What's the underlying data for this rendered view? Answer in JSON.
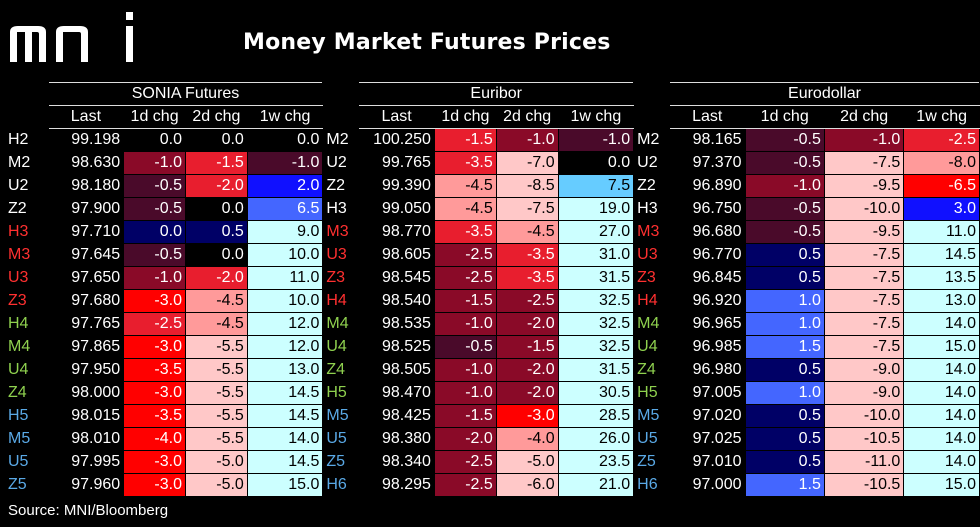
{
  "logo_text": "mni",
  "title": "Money Market Futures Prices",
  "source": "Source: MNI/Bloomberg",
  "colors": {
    "background": "#000000",
    "contract_white": "#ffffff",
    "contract_red": "#ff3030",
    "contract_green": "#8fd14f",
    "contract_blue": "#5aa9e6",
    "neg_dark": "#4a0a2a",
    "neg_mid": "#8a0a28",
    "neg_red": "#e81e2e",
    "neg_bright": "#ff0000",
    "neg_light": "#ff9a9a",
    "neg_pale": "#ffc8c8",
    "pos_light": "#ccffff",
    "pos_cyan": "#66ccff",
    "pos_mid": "#4466ff",
    "pos_blue": "#1010ff",
    "pos_dark": "#000066"
  },
  "chart_data": {
    "type": "table",
    "title": "Money Market Futures Prices",
    "groups": [
      {
        "name": "SONIA Futures",
        "columns": [
          "Last",
          "1d chg",
          "2d chg",
          "1w chg"
        ],
        "rows": [
          {
            "contract": "H2",
            "color": "white",
            "last": "99.198",
            "d1": "0.0",
            "d2": "0.0",
            "w1": "0.0"
          },
          {
            "contract": "M2",
            "color": "white",
            "last": "98.630",
            "d1": "-1.0",
            "d2": "-1.5",
            "w1": "-1.0"
          },
          {
            "contract": "U2",
            "color": "white",
            "last": "98.180",
            "d1": "-0.5",
            "d2": "-2.0",
            "w1": "2.0"
          },
          {
            "contract": "Z2",
            "color": "white",
            "last": "97.900",
            "d1": "-0.5",
            "d2": "0.0",
            "w1": "6.5"
          },
          {
            "contract": "H3",
            "color": "red",
            "last": "97.710",
            "d1": "0.0",
            "d2": "0.5",
            "w1": "9.0"
          },
          {
            "contract": "M3",
            "color": "red",
            "last": "97.645",
            "d1": "-0.5",
            "d2": "0.0",
            "w1": "10.0"
          },
          {
            "contract": "U3",
            "color": "red",
            "last": "97.650",
            "d1": "-1.0",
            "d2": "-2.0",
            "w1": "11.0"
          },
          {
            "contract": "Z3",
            "color": "red",
            "last": "97.680",
            "d1": "-3.0",
            "d2": "-4.5",
            "w1": "10.0"
          },
          {
            "contract": "H4",
            "color": "green",
            "last": "97.765",
            "d1": "-2.5",
            "d2": "-4.5",
            "w1": "12.0"
          },
          {
            "contract": "M4",
            "color": "green",
            "last": "97.865",
            "d1": "-3.0",
            "d2": "-5.5",
            "w1": "12.0"
          },
          {
            "contract": "U4",
            "color": "green",
            "last": "97.950",
            "d1": "-3.5",
            "d2": "-5.5",
            "w1": "13.0"
          },
          {
            "contract": "Z4",
            "color": "green",
            "last": "98.000",
            "d1": "-3.0",
            "d2": "-5.5",
            "w1": "14.5"
          },
          {
            "contract": "H5",
            "color": "blue",
            "last": "98.015",
            "d1": "-3.5",
            "d2": "-5.5",
            "w1": "14.5"
          },
          {
            "contract": "M5",
            "color": "blue",
            "last": "98.010",
            "d1": "-4.0",
            "d2": "-5.5",
            "w1": "14.0"
          },
          {
            "contract": "U5",
            "color": "blue",
            "last": "97.995",
            "d1": "-3.0",
            "d2": "-5.0",
            "w1": "14.5"
          },
          {
            "contract": "Z5",
            "color": "blue",
            "last": "97.960",
            "d1": "-3.0",
            "d2": "-5.0",
            "w1": "15.0"
          }
        ]
      },
      {
        "name": "Euribor",
        "columns": [
          "Last",
          "1d chg",
          "2d chg",
          "1w chg"
        ],
        "rows": [
          {
            "contract": "M2",
            "color": "white",
            "last": "100.250",
            "d1": "-1.5",
            "d2": "-1.0",
            "w1": "-1.0"
          },
          {
            "contract": "U2",
            "color": "white",
            "last": "99.765",
            "d1": "-3.5",
            "d2": "-7.0",
            "w1": "0.0"
          },
          {
            "contract": "Z2",
            "color": "white",
            "last": "99.390",
            "d1": "-4.5",
            "d2": "-8.5",
            "w1": "7.5"
          },
          {
            "contract": "H3",
            "color": "white",
            "last": "99.050",
            "d1": "-4.5",
            "d2": "-7.5",
            "w1": "19.0"
          },
          {
            "contract": "M3",
            "color": "red",
            "last": "98.770",
            "d1": "-3.5",
            "d2": "-4.5",
            "w1": "27.0"
          },
          {
            "contract": "U3",
            "color": "red",
            "last": "98.605",
            "d1": "-2.5",
            "d2": "-3.5",
            "w1": "31.0"
          },
          {
            "contract": "Z3",
            "color": "red",
            "last": "98.545",
            "d1": "-2.5",
            "d2": "-3.5",
            "w1": "31.5"
          },
          {
            "contract": "H4",
            "color": "red",
            "last": "98.540",
            "d1": "-1.5",
            "d2": "-2.5",
            "w1": "32.5"
          },
          {
            "contract": "M4",
            "color": "green",
            "last": "98.535",
            "d1": "-1.0",
            "d2": "-2.0",
            "w1": "32.5"
          },
          {
            "contract": "U4",
            "color": "green",
            "last": "98.525",
            "d1": "-0.5",
            "d2": "-1.5",
            "w1": "32.5"
          },
          {
            "contract": "Z4",
            "color": "green",
            "last": "98.505",
            "d1": "-1.0",
            "d2": "-2.0",
            "w1": "31.5"
          },
          {
            "contract": "H5",
            "color": "green",
            "last": "98.470",
            "d1": "-1.0",
            "d2": "-2.0",
            "w1": "30.5"
          },
          {
            "contract": "M5",
            "color": "blue",
            "last": "98.425",
            "d1": "-1.5",
            "d2": "-3.0",
            "w1": "28.5"
          },
          {
            "contract": "U5",
            "color": "blue",
            "last": "98.380",
            "d1": "-2.0",
            "d2": "-4.0",
            "w1": "26.0"
          },
          {
            "contract": "Z5",
            "color": "blue",
            "last": "98.340",
            "d1": "-2.5",
            "d2": "-5.0",
            "w1": "23.5"
          },
          {
            "contract": "H6",
            "color": "blue",
            "last": "98.295",
            "d1": "-2.5",
            "d2": "-6.0",
            "w1": "21.0"
          }
        ]
      },
      {
        "name": "Eurodollar",
        "columns": [
          "Last",
          "1d chg",
          "2d chg",
          "1w chg"
        ],
        "rows": [
          {
            "contract": "M2",
            "color": "white",
            "last": "98.165",
            "d1": "-0.5",
            "d2": "-1.0",
            "w1": "-2.5"
          },
          {
            "contract": "U2",
            "color": "white",
            "last": "97.370",
            "d1": "-0.5",
            "d2": "-7.5",
            "w1": "-8.0"
          },
          {
            "contract": "Z2",
            "color": "white",
            "last": "96.890",
            "d1": "-1.0",
            "d2": "-9.5",
            "w1": "-6.5"
          },
          {
            "contract": "H3",
            "color": "white",
            "last": "96.750",
            "d1": "-0.5",
            "d2": "-10.0",
            "w1": "3.0"
          },
          {
            "contract": "M3",
            "color": "red",
            "last": "96.680",
            "d1": "-0.5",
            "d2": "-9.5",
            "w1": "11.0"
          },
          {
            "contract": "U3",
            "color": "red",
            "last": "96.770",
            "d1": "0.5",
            "d2": "-7.5",
            "w1": "14.5"
          },
          {
            "contract": "Z3",
            "color": "red",
            "last": "96.845",
            "d1": "0.5",
            "d2": "-7.5",
            "w1": "13.5"
          },
          {
            "contract": "H4",
            "color": "red",
            "last": "96.920",
            "d1": "1.0",
            "d2": "-7.5",
            "w1": "13.0"
          },
          {
            "contract": "M4",
            "color": "green",
            "last": "96.965",
            "d1": "1.0",
            "d2": "-7.5",
            "w1": "14.0"
          },
          {
            "contract": "U4",
            "color": "green",
            "last": "96.985",
            "d1": "1.5",
            "d2": "-7.5",
            "w1": "15.0"
          },
          {
            "contract": "Z4",
            "color": "green",
            "last": "96.980",
            "d1": "0.5",
            "d2": "-9.0",
            "w1": "14.0"
          },
          {
            "contract": "H5",
            "color": "green",
            "last": "97.005",
            "d1": "1.0",
            "d2": "-9.0",
            "w1": "14.0"
          },
          {
            "contract": "M5",
            "color": "blue",
            "last": "97.020",
            "d1": "0.5",
            "d2": "-10.0",
            "w1": "14.0"
          },
          {
            "contract": "U5",
            "color": "blue",
            "last": "97.025",
            "d1": "0.5",
            "d2": "-10.5",
            "w1": "14.0"
          },
          {
            "contract": "Z5",
            "color": "blue",
            "last": "97.010",
            "d1": "0.5",
            "d2": "-11.0",
            "w1": "14.0"
          },
          {
            "contract": "H6",
            "color": "blue",
            "last": "97.000",
            "d1": "1.5",
            "d2": "-10.5",
            "w1": "15.0"
          }
        ]
      }
    ],
    "cell_fills": {
      "sonia": [
        [
          "",
          "",
          ""
        ],
        [
          "neg_mid",
          "neg_red",
          "neg_dark"
        ],
        [
          "neg_dark",
          "neg_red",
          "pos_blue"
        ],
        [
          "neg_dark",
          "",
          "pos_mid"
        ],
        [
          "pos_dark",
          "pos_dark",
          "pos_light"
        ],
        [
          "neg_dark",
          "",
          "pos_light"
        ],
        [
          "neg_mid",
          "neg_red",
          "pos_light"
        ],
        [
          "neg_bright",
          "neg_light",
          "pos_light"
        ],
        [
          "neg_red",
          "neg_light",
          "pos_light"
        ],
        [
          "neg_bright",
          "neg_pale",
          "pos_light"
        ],
        [
          "neg_bright",
          "neg_pale",
          "pos_light"
        ],
        [
          "neg_bright",
          "neg_pale",
          "pos_light"
        ],
        [
          "neg_bright",
          "neg_pale",
          "pos_light"
        ],
        [
          "neg_bright",
          "neg_pale",
          "pos_light"
        ],
        [
          "neg_bright",
          "neg_pale",
          "pos_light"
        ],
        [
          "neg_bright",
          "neg_pale",
          "pos_light"
        ]
      ],
      "euribor": [
        [
          "neg_red",
          "neg_mid",
          "neg_dark"
        ],
        [
          "neg_red",
          "neg_pale",
          ""
        ],
        [
          "neg_light",
          "neg_pale",
          "pos_cyan"
        ],
        [
          "neg_light",
          "neg_pale",
          "pos_light"
        ],
        [
          "neg_red",
          "neg_light",
          "pos_light"
        ],
        [
          "neg_mid",
          "neg_red",
          "pos_light"
        ],
        [
          "neg_mid",
          "neg_red",
          "pos_light"
        ],
        [
          "neg_mid",
          "neg_mid",
          "pos_light"
        ],
        [
          "neg_mid",
          "neg_mid",
          "pos_light"
        ],
        [
          "neg_dark",
          "neg_mid",
          "pos_light"
        ],
        [
          "neg_mid",
          "neg_mid",
          "pos_light"
        ],
        [
          "neg_mid",
          "neg_mid",
          "pos_light"
        ],
        [
          "neg_mid",
          "neg_bright",
          "pos_light"
        ],
        [
          "neg_mid",
          "neg_light",
          "pos_light"
        ],
        [
          "neg_mid",
          "neg_pale",
          "pos_light"
        ],
        [
          "neg_mid",
          "neg_pale",
          "pos_light"
        ]
      ],
      "eurodollar": [
        [
          "neg_dark",
          "neg_mid",
          "neg_red"
        ],
        [
          "neg_dark",
          "neg_pale",
          "neg_light"
        ],
        [
          "neg_mid",
          "neg_pale",
          "neg_bright"
        ],
        [
          "neg_dark",
          "neg_pale",
          "pos_blue"
        ],
        [
          "neg_dark",
          "neg_pale",
          "pos_light"
        ],
        [
          "pos_dark",
          "neg_pale",
          "pos_light"
        ],
        [
          "pos_dark",
          "neg_pale",
          "pos_light"
        ],
        [
          "pos_mid",
          "neg_pale",
          "pos_light"
        ],
        [
          "pos_mid",
          "neg_pale",
          "pos_light"
        ],
        [
          "pos_mid",
          "neg_pale",
          "pos_light"
        ],
        [
          "pos_dark",
          "neg_pale",
          "pos_light"
        ],
        [
          "pos_mid",
          "neg_pale",
          "pos_light"
        ],
        [
          "pos_dark",
          "neg_pale",
          "pos_light"
        ],
        [
          "pos_dark",
          "neg_pale",
          "pos_light"
        ],
        [
          "pos_dark",
          "neg_pale",
          "pos_light"
        ],
        [
          "pos_mid",
          "neg_pale",
          "pos_light"
        ]
      ]
    }
  }
}
